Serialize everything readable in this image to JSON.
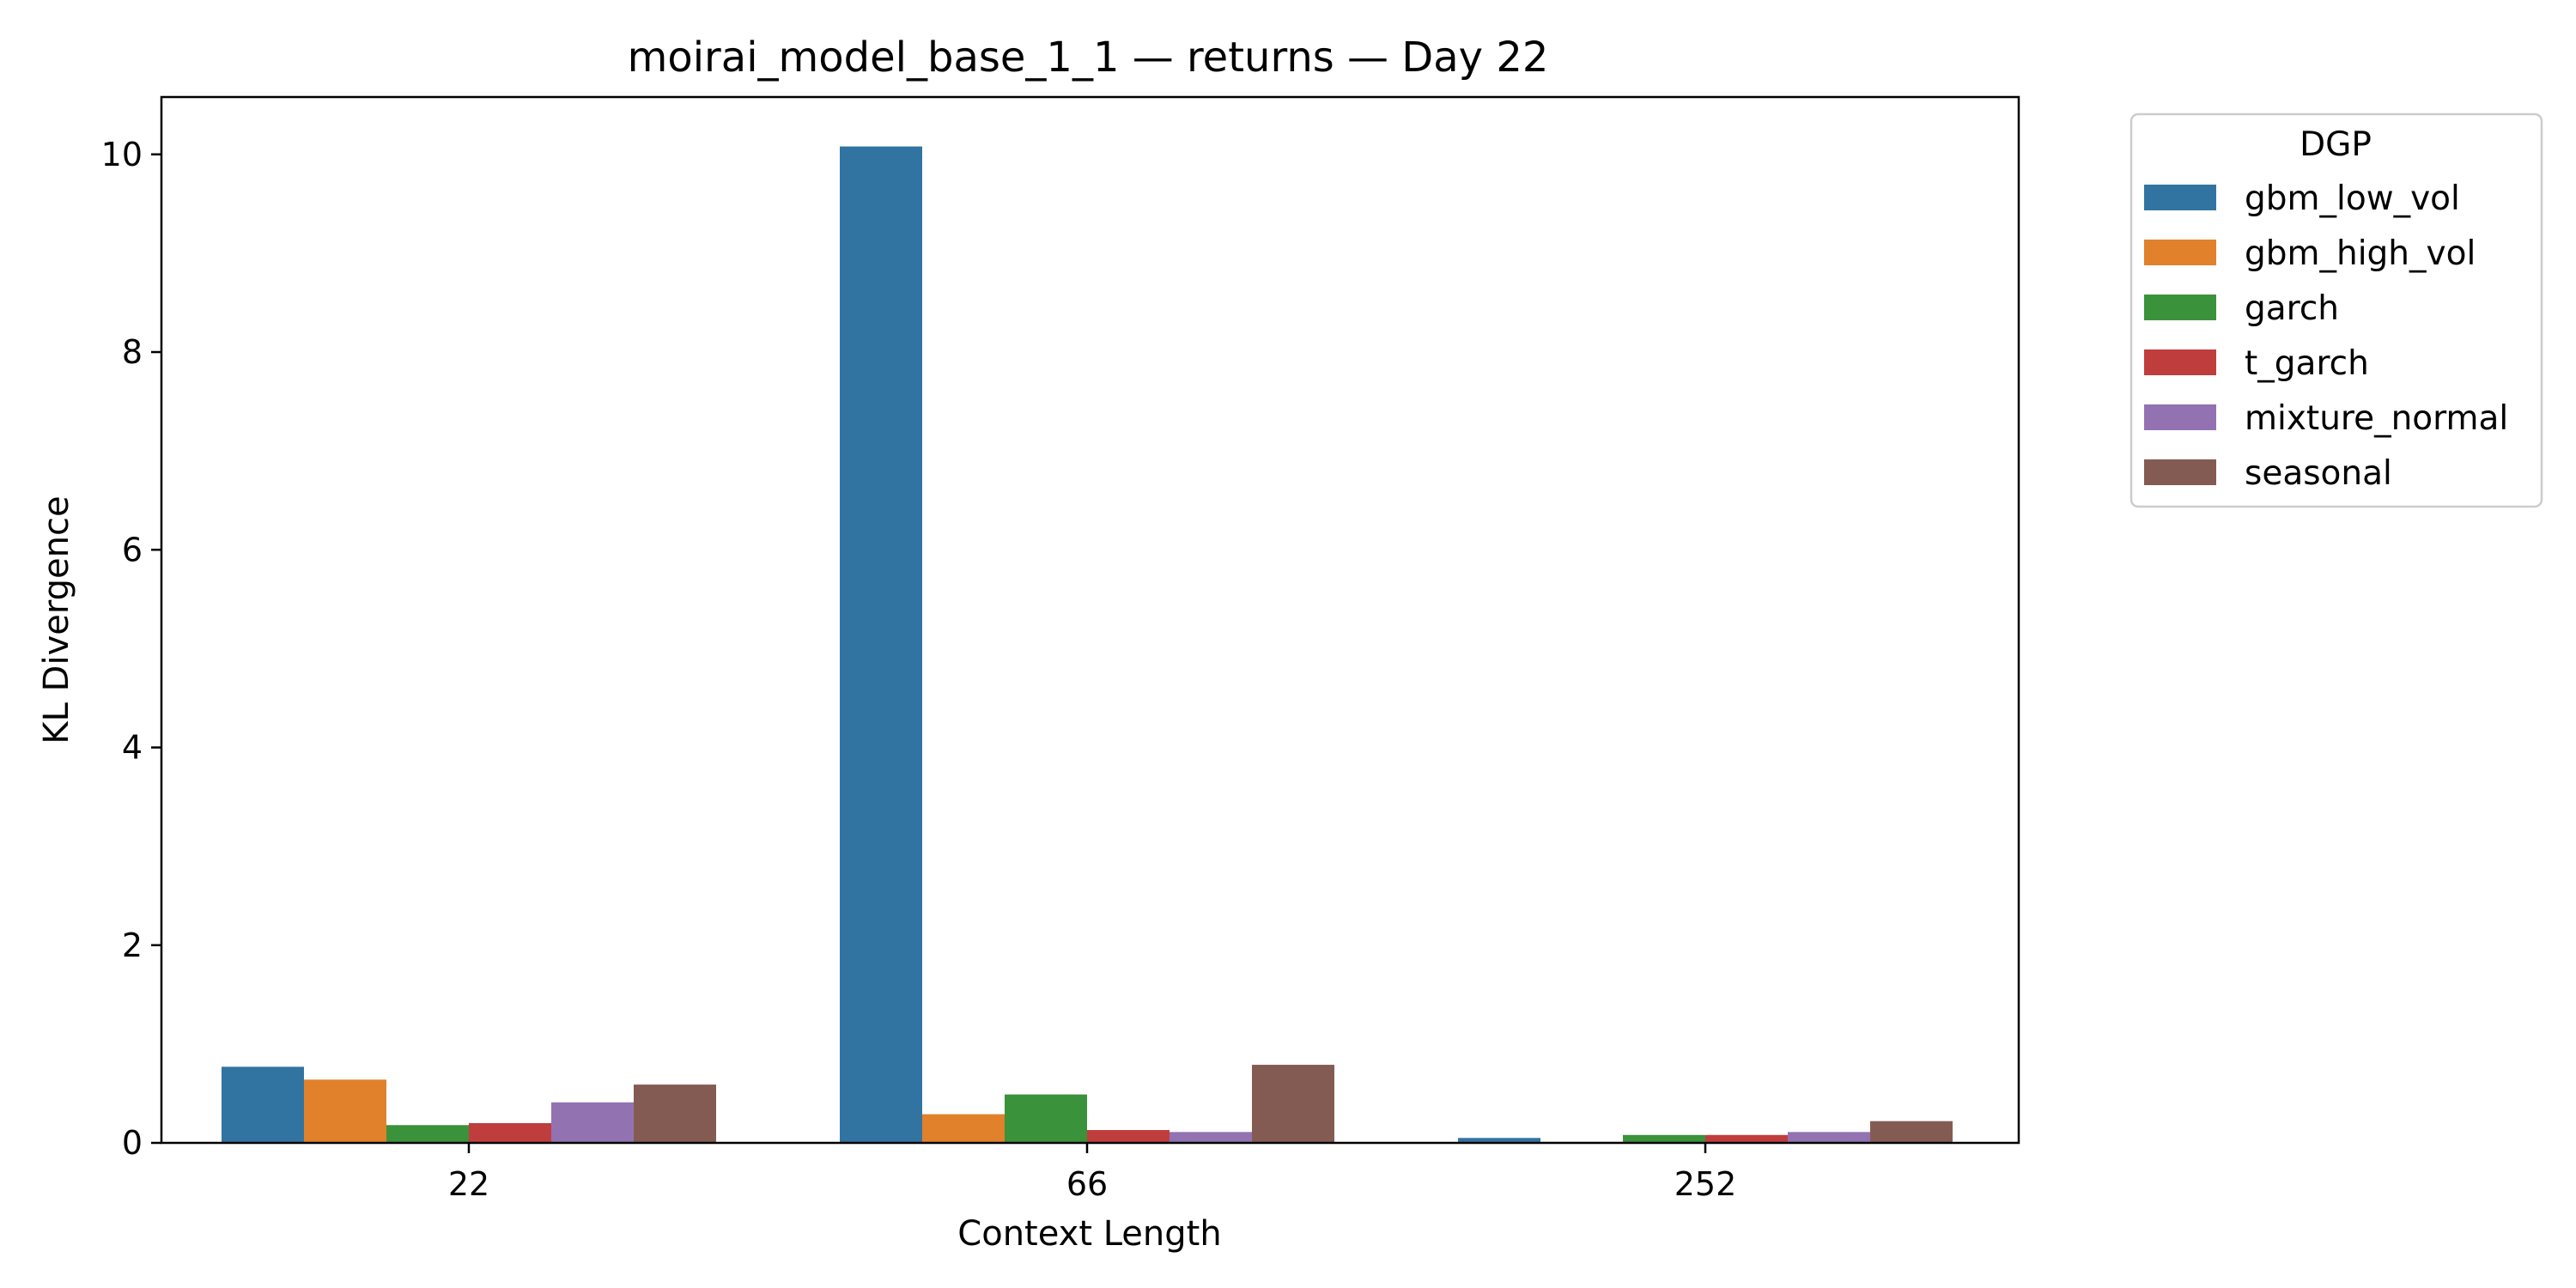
{
  "chart_data": {
    "type": "bar",
    "title": "moirai_model_base_1_1 — returns — Day 22",
    "xlabel": "Context Length",
    "ylabel": "KL Divergence",
    "categories": [
      "22",
      "66",
      "252"
    ],
    "ylim": [
      0,
      10.58
    ],
    "yticks": [
      0,
      2,
      4,
      6,
      8,
      10
    ],
    "grid": false,
    "legend": {
      "title": "DGP",
      "placement": "outside-top-right"
    },
    "series": [
      {
        "name": "gbm_low_vol",
        "color": "#3274a1",
        "values": [
          0.77,
          10.08,
          0.05
        ]
      },
      {
        "name": "gbm_high_vol",
        "color": "#e1812c",
        "values": [
          0.64,
          0.29,
          0.01
        ]
      },
      {
        "name": "garch",
        "color": "#3a923a",
        "values": [
          0.18,
          0.49,
          0.08
        ]
      },
      {
        "name": "t_garch",
        "color": "#c03d3e",
        "values": [
          0.2,
          0.13,
          0.08
        ]
      },
      {
        "name": "mixture_normal",
        "color": "#9372b2",
        "values": [
          0.41,
          0.11,
          0.11
        ]
      },
      {
        "name": "seasonal",
        "color": "#845b53",
        "values": [
          0.59,
          0.79,
          0.22
        ]
      }
    ]
  }
}
